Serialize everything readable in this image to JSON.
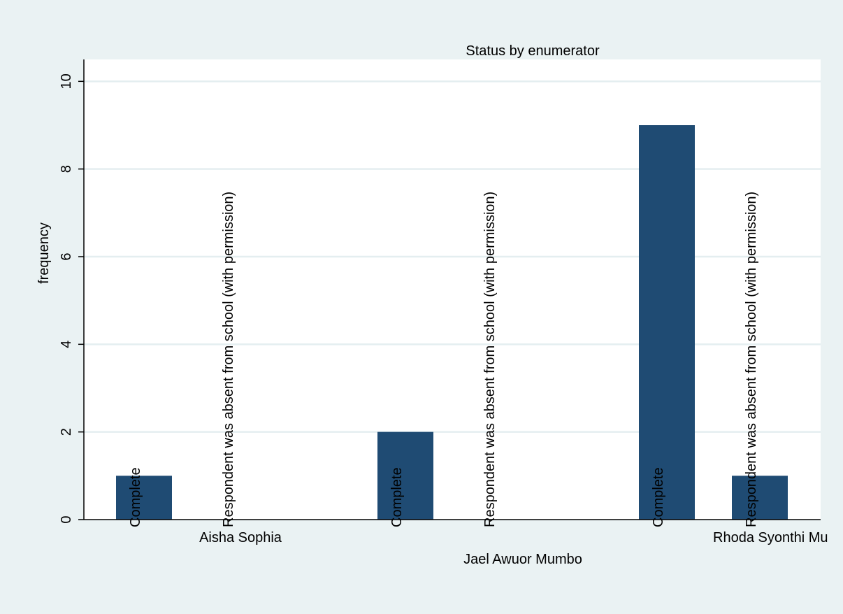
{
  "chart_data": {
    "type": "bar",
    "title": "Status by enumerator",
    "ylabel": "frequency",
    "xlabel": "",
    "ylim": [
      0,
      10.5
    ],
    "yticks": [
      0,
      2,
      4,
      6,
      8,
      10
    ],
    "grid": true,
    "legend": "none",
    "bar_color": "#1f4b73",
    "groups": [
      {
        "name": "Aisha Sophia",
        "bars": [
          {
            "category": "Complete",
            "value": 1
          },
          {
            "category": "Respondent was absent from school (with permission)",
            "value": 0
          }
        ]
      },
      {
        "name": "Jael Awuor Mumbo",
        "bars": [
          {
            "category": "Complete",
            "value": 2
          },
          {
            "category": "Respondent was absent from school (with permission)",
            "value": 0
          }
        ]
      },
      {
        "name": "Rhoda Syonthi Mu",
        "bars": [
          {
            "category": "Complete",
            "value": 9
          },
          {
            "category": "Respondent was absent from school (with permission)",
            "value": 1
          }
        ]
      }
    ]
  },
  "colors": {
    "page_background": "#eaf2f3",
    "plot_background": "#ffffff",
    "grid": "#e4eef0",
    "bar": "#1f4b73"
  }
}
